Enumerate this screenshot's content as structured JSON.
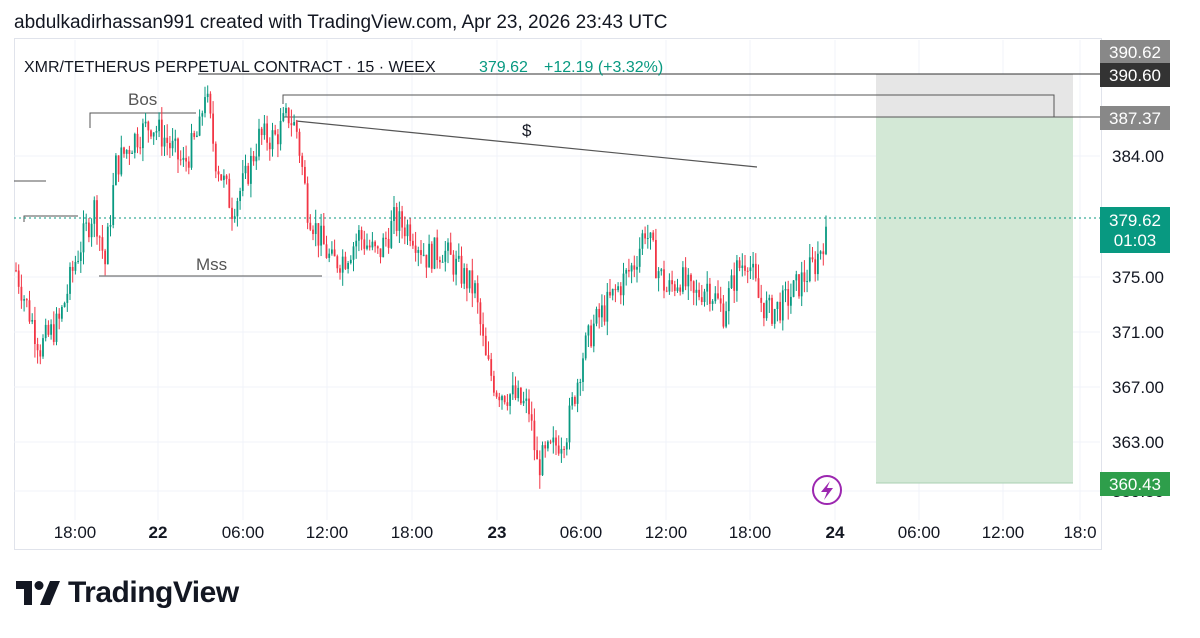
{
  "header": {
    "credit": "abdulkadirhassan991 created with TradingView.com, Apr 23, 2026 23:43 UTC"
  },
  "legend": {
    "symbol": "XMR/TETHERUS PERPETUAL CONTRACT · 15 · WEEX",
    "last": "379.62",
    "change": "+12.19 (+3.32%)"
  },
  "annotations": {
    "bos": "Bos",
    "mss": "Mss",
    "dollar": "$"
  },
  "price_tags": {
    "top": "390.62",
    "entry": "390.60",
    "mid": "387.37",
    "current": "379.62",
    "countdown": "01:03",
    "target": "360.43"
  },
  "colors": {
    "up": "#089981",
    "down": "#f23645",
    "green_zone": "#d3e8d6",
    "gray_zone": "#e6e6e6",
    "target_tag": "#2e9e4b",
    "gray_tag": "#888888",
    "dark_tag": "#333333",
    "current_tag": "#089981",
    "flash_icon": "#9c27b0"
  },
  "footer": {
    "brand": "TradingView",
    "logo_icon": "tradingview-logo-icon"
  },
  "chart_data": {
    "type": "candlestick",
    "y_ticks": [
      "390.62",
      "384.00",
      "379.62",
      "375.00",
      "371.00",
      "367.00",
      "363.00",
      "359.50"
    ],
    "x_ticks": [
      "18:00",
      "22",
      "06:00",
      "12:00",
      "18:00",
      "23",
      "06:00",
      "12:00",
      "18:00",
      "24",
      "06:00",
      "12:00",
      "18:0"
    ],
    "ylim": [
      358.6,
      393.0
    ],
    "last_price": 379.62,
    "short_position": {
      "entry": 387.37,
      "stop": 390.6,
      "target": 360.43
    },
    "bos_level": 387.9,
    "mss_level": 375.4,
    "dollar_line": {
      "from": 387.2,
      "to": 383.6
    },
    "close_path": [
      [
        0,
        376.5
      ],
      [
        4,
        374.0
      ],
      [
        9,
        371.0
      ],
      [
        16,
        372.8
      ],
      [
        22,
        377.2
      ],
      [
        29,
        381.0
      ],
      [
        33,
        377.0
      ],
      [
        37,
        384.0
      ],
      [
        44,
        386.0
      ],
      [
        50,
        387.0
      ],
      [
        55,
        386.0
      ],
      [
        62,
        384.0
      ],
      [
        68,
        386.5
      ],
      [
        70,
        389.5
      ],
      [
        74,
        384.5
      ],
      [
        80,
        381.0
      ],
      [
        85,
        383.0
      ],
      [
        90,
        386.0
      ],
      [
        96,
        386.0
      ],
      [
        101,
        387.6
      ],
      [
        104,
        386.5
      ],
      [
        108,
        381.0
      ],
      [
        112,
        379.0
      ],
      [
        117,
        377.0
      ],
      [
        122,
        377.5
      ],
      [
        127,
        379.0
      ],
      [
        134,
        377.5
      ],
      [
        140,
        380.0
      ],
      [
        146,
        379.5
      ],
      [
        152,
        377.5
      ],
      [
        158,
        378.0
      ],
      [
        164,
        376.5
      ],
      [
        170,
        375.0
      ],
      [
        174,
        370.0
      ],
      [
        178,
        368.0
      ],
      [
        184,
        367.5
      ],
      [
        190,
        366.5
      ],
      [
        193,
        362.5
      ],
      [
        198,
        363.5
      ],
      [
        204,
        365.0
      ],
      [
        210,
        370.5
      ],
      [
        214,
        372.5
      ],
      [
        219,
        374.0
      ],
      [
        224,
        375.5
      ],
      [
        229,
        377.0
      ],
      [
        233,
        379.5
      ],
      [
        237,
        377.0
      ],
      [
        241,
        375.0
      ],
      [
        246,
        376.0
      ],
      [
        251,
        374.5
      ],
      [
        256,
        375.5
      ],
      [
        262,
        373.5
      ],
      [
        267,
        376.5
      ],
      [
        271,
        377.5
      ],
      [
        275,
        374.5
      ],
      [
        279,
        373.5
      ],
      [
        284,
        374.0
      ],
      [
        288,
        375.0
      ],
      [
        292,
        376.0
      ],
      [
        296,
        377.0
      ],
      [
        300,
        379.3
      ]
    ]
  }
}
